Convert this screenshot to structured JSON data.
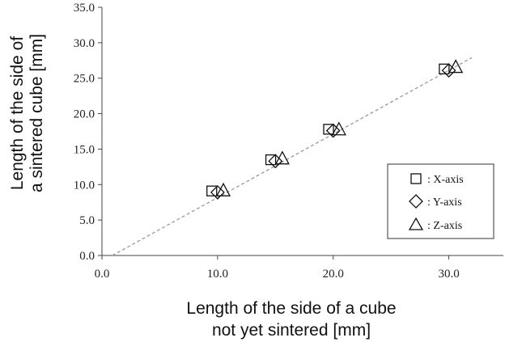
{
  "chart_data": {
    "type": "scatter",
    "xlabel_lines": [
      "Length of the side of a cube",
      "not yet sintered [mm]"
    ],
    "ylabel_lines": [
      "Length of the side of",
      "a sintered cube [mm]"
    ],
    "xlim": [
      0,
      35
    ],
    "ylim": [
      0,
      35
    ],
    "x_ticks": [
      "0.0",
      "10.0",
      "20.0",
      "30.0"
    ],
    "y_ticks": [
      "0.0",
      "5.0",
      "10.0",
      "15.0",
      "20.0",
      "25.0",
      "30.0",
      "35.0"
    ],
    "series": [
      {
        "name": ": X-axis",
        "marker": "square",
        "x": [
          9.5,
          14.6,
          19.6,
          29.6
        ],
        "y": [
          9.1,
          13.5,
          17.8,
          26.3
        ]
      },
      {
        "name": ": Y-axis",
        "marker": "diamond",
        "x": [
          10.0,
          15.0,
          20.0,
          30.0
        ],
        "y": [
          8.9,
          13.3,
          17.6,
          26.1
        ]
      },
      {
        "name": ": Z-axis",
        "marker": "triangle",
        "x": [
          10.5,
          15.6,
          20.5,
          30.6
        ],
        "y": [
          9.1,
          13.6,
          17.7,
          26.5
        ]
      }
    ],
    "trendline": {
      "style": "dashed",
      "color": "#999999",
      "x": [
        0.9,
        32.0
      ],
      "y": [
        0.0,
        27.9
      ]
    },
    "grid": false,
    "legend_position": "bottom-right"
  }
}
